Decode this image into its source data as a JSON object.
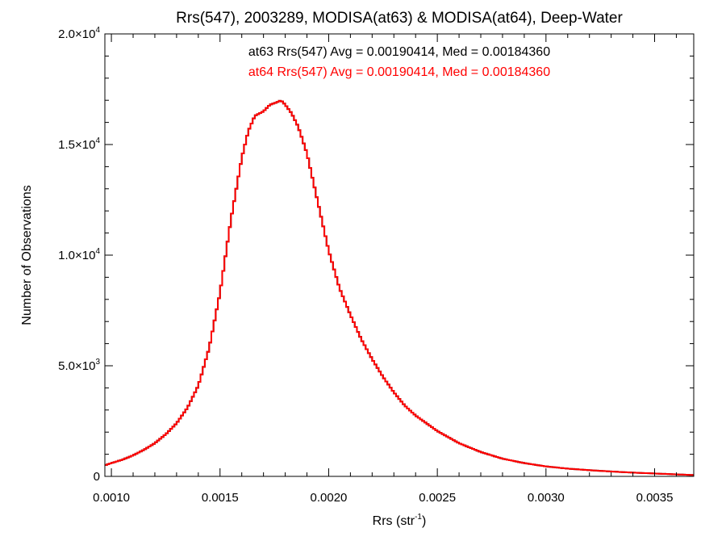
{
  "chart_data": {
    "type": "line",
    "title": "Rrs(547), 2003289, MODISA(at63) & MODISA(at64), Deep-Water",
    "xlabel": {
      "base": "Rrs (str",
      "sup": "-1",
      "tail": ")"
    },
    "ylabel": "Number of Observations",
    "xlim": [
      0.00097,
      0.00368
    ],
    "ylim": [
      0,
      20000
    ],
    "grid": false,
    "x_ticks": [
      {
        "value": 0.001,
        "label": "0.0010"
      },
      {
        "value": 0.0015,
        "label": "0.0015"
      },
      {
        "value": 0.002,
        "label": "0.0020"
      },
      {
        "value": 0.0025,
        "label": "0.0025"
      },
      {
        "value": 0.003,
        "label": "0.0030"
      },
      {
        "value": 0.0035,
        "label": "0.0035"
      }
    ],
    "y_ticks": [
      {
        "value": 0,
        "base": "0",
        "exp": ""
      },
      {
        "value": 5000,
        "base": "5.0×10",
        "exp": "3"
      },
      {
        "value": 10000,
        "base": "1.0×10",
        "exp": "4"
      },
      {
        "value": 15000,
        "base": "1.5×10",
        "exp": "4"
      },
      {
        "value": 20000,
        "base": "2.0×10",
        "exp": "4"
      }
    ],
    "annotations": [
      {
        "text": "at63 Rrs(547) Avg = 0.00190414, Med = 0.00184360",
        "color": "#000000"
      },
      {
        "text": "at64 Rrs(547) Avg = 0.00190414, Med = 0.00184360",
        "color": "#ff0000"
      }
    ],
    "series": [
      {
        "name": "at63",
        "color": "#000000",
        "x": [
          0.00097,
          0.001,
          0.00105,
          0.0011,
          0.00115,
          0.0012,
          0.00125,
          0.0013,
          0.00135,
          0.0014,
          0.00145,
          0.0015,
          0.00155,
          0.0016,
          0.00163,
          0.00166,
          0.0017,
          0.00173,
          0.00176,
          0.00178,
          0.0018,
          0.00183,
          0.00186,
          0.0019,
          0.00195,
          0.002,
          0.00205,
          0.0021,
          0.00215,
          0.0022,
          0.00225,
          0.0023,
          0.00235,
          0.0024,
          0.00245,
          0.0025,
          0.0026,
          0.0027,
          0.0028,
          0.0029,
          0.003,
          0.0031,
          0.0032,
          0.0033,
          0.0034,
          0.0035,
          0.0036,
          0.00368
        ],
        "y": [
          500,
          600,
          750,
          950,
          1200,
          1500,
          1900,
          2400,
          3100,
          4100,
          5800,
          8300,
          11600,
          14400,
          15600,
          16300,
          16500,
          16800,
          16900,
          17000,
          16800,
          16400,
          15800,
          14600,
          12400,
          10200,
          8500,
          7300,
          6200,
          5300,
          4500,
          3800,
          3200,
          2750,
          2400,
          2050,
          1500,
          1100,
          800,
          600,
          450,
          350,
          280,
          220,
          170,
          130,
          90,
          60
        ]
      },
      {
        "name": "at64",
        "color": "#ff0000",
        "x": [
          0.00097,
          0.001,
          0.00105,
          0.0011,
          0.00115,
          0.0012,
          0.00125,
          0.0013,
          0.00135,
          0.0014,
          0.00145,
          0.0015,
          0.00155,
          0.0016,
          0.00163,
          0.00166,
          0.0017,
          0.00173,
          0.00176,
          0.00178,
          0.0018,
          0.00183,
          0.00186,
          0.0019,
          0.00195,
          0.002,
          0.00205,
          0.0021,
          0.00215,
          0.0022,
          0.00225,
          0.0023,
          0.00235,
          0.0024,
          0.00245,
          0.0025,
          0.0026,
          0.0027,
          0.0028,
          0.0029,
          0.003,
          0.0031,
          0.0032,
          0.0033,
          0.0034,
          0.0035,
          0.0036,
          0.00368
        ],
        "y": [
          500,
          600,
          750,
          950,
          1200,
          1500,
          1900,
          2400,
          3100,
          4100,
          5800,
          8300,
          11600,
          14400,
          15600,
          16300,
          16500,
          16800,
          16900,
          17000,
          16800,
          16400,
          15800,
          14600,
          12400,
          10200,
          8500,
          7300,
          6200,
          5300,
          4500,
          3800,
          3200,
          2750,
          2400,
          2050,
          1500,
          1100,
          800,
          600,
          450,
          350,
          280,
          220,
          170,
          130,
          90,
          60
        ]
      }
    ]
  }
}
